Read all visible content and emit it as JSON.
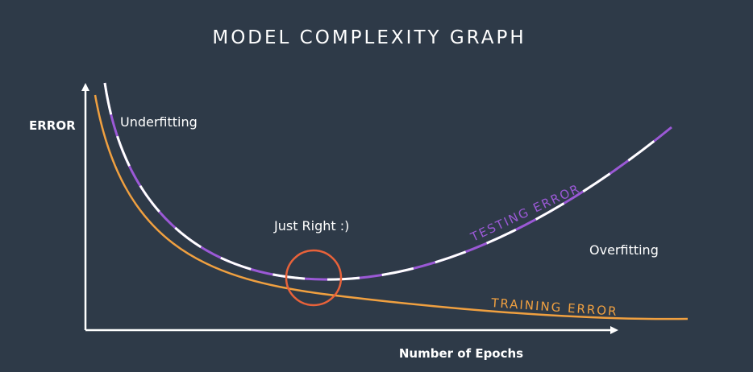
{
  "title": "MODEL COMPLEXITY GRAPH",
  "y_axis_label": "ERROR",
  "x_axis_label": "Number of Epochs",
  "annotations": {
    "underfitting": "Underfitting",
    "just_right": "Just Right :)",
    "overfitting": "Overfitting"
  },
  "curves": {
    "testing": {
      "label": "TESTING ERROR",
      "color": "#9b59d6",
      "dash_color": "#ffffff"
    },
    "training": {
      "label": "TRAINING ERROR",
      "color": "#f0a040"
    }
  },
  "marker_color": "#e8623a",
  "axis_color": "#ffffff",
  "background_color": "#2e3a48"
}
